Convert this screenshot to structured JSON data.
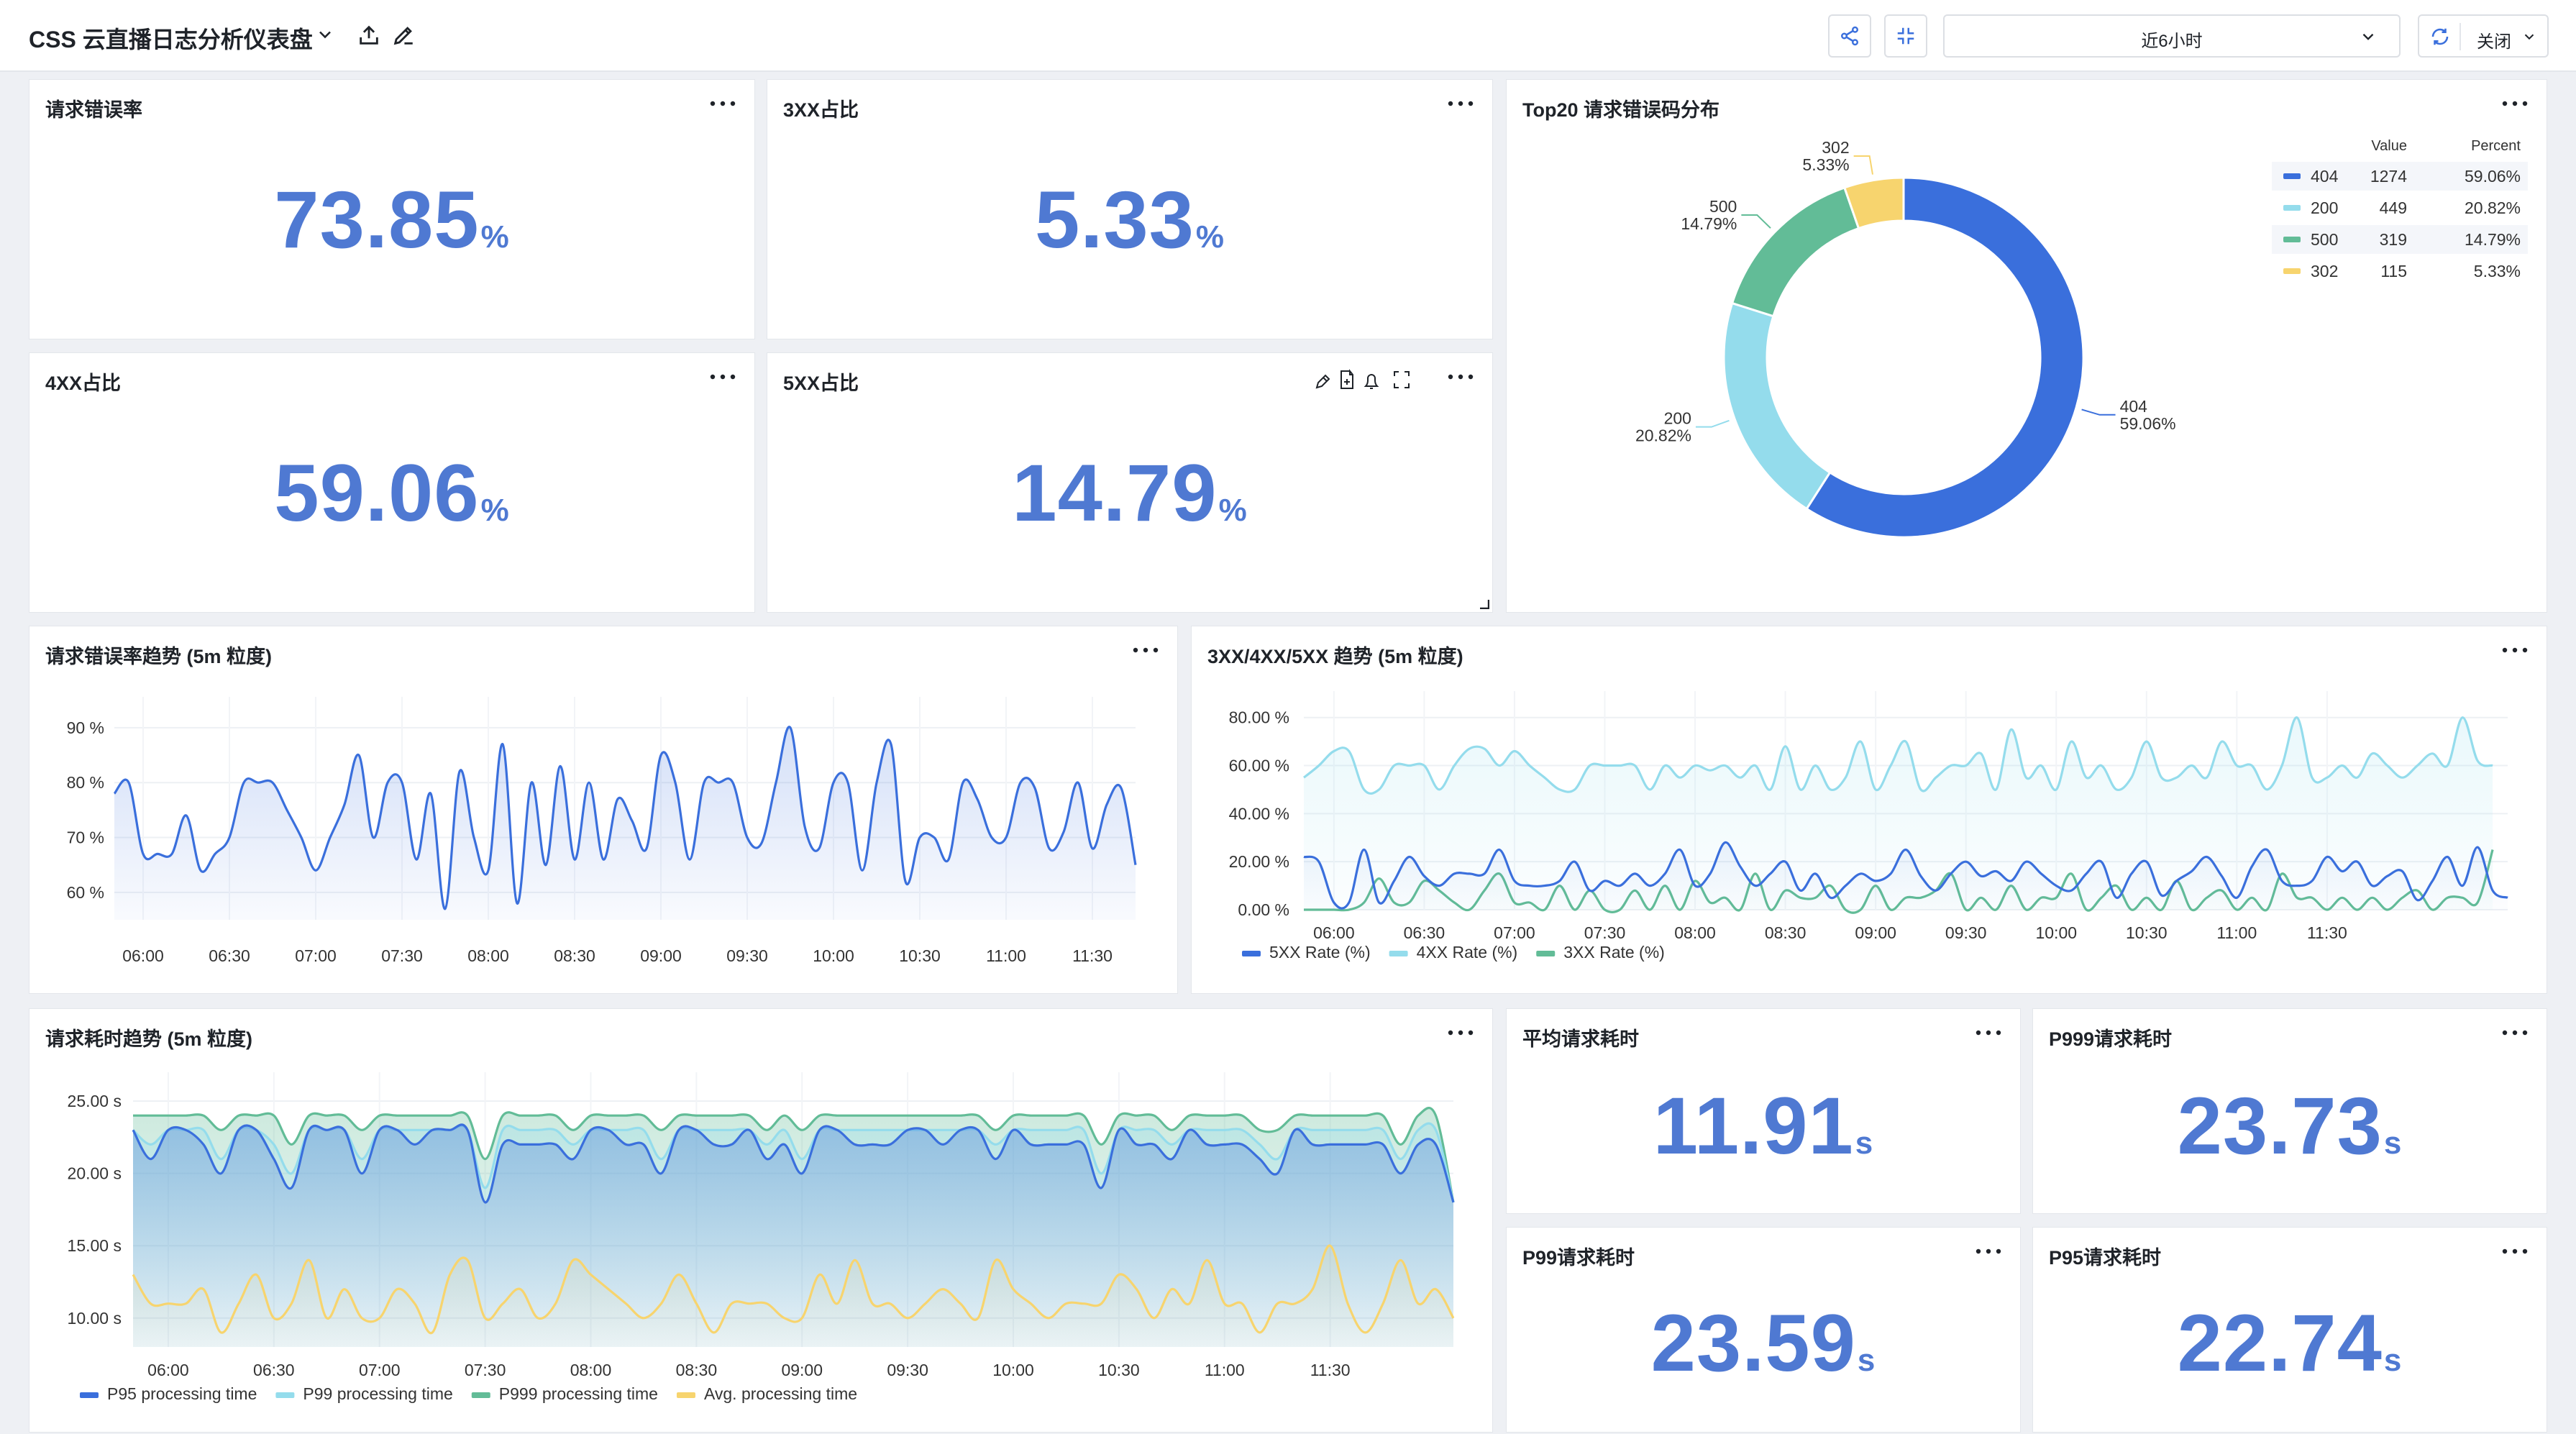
{
  "header": {
    "title": "CSS 云直播日志分析仪表盘",
    "time_range": "近6小时",
    "refresh_label": "关闭"
  },
  "icons": {
    "title": [
      "chevron-down-icon",
      "upload-icon",
      "edit-pencil-icon"
    ],
    "toolbar": [
      "share-icon",
      "collapse-icon",
      "refresh-icon",
      "chevron-down-icon"
    ],
    "panel": [
      "more-icon",
      "pencil-icon",
      "add-file-icon",
      "bell-icon",
      "fullscreen-icon"
    ]
  },
  "colors": {
    "accent": "#4f79d2",
    "blue": "#3a6fdc",
    "cyan": "#94dcec",
    "green": "#62bc97",
    "yellow": "#f7d46e"
  },
  "panels": {
    "error_rate": {
      "title": "请求错误率",
      "value": "73.85",
      "unit": "%"
    },
    "ratio_3xx": {
      "title": "3XX占比",
      "value": "5.33",
      "unit": "%"
    },
    "ratio_4xx": {
      "title": "4XX占比",
      "value": "59.06",
      "unit": "%"
    },
    "ratio_5xx": {
      "title": "5XX占比",
      "value": "14.79",
      "unit": "%"
    },
    "top20": {
      "title": "Top20 请求错误码分布"
    },
    "error_trend": {
      "title": "请求错误率趋势 (5m 粒度)"
    },
    "xx_trend": {
      "title": "3XX/4XX/5XX 趋势 (5m 粒度)"
    },
    "latency_trend": {
      "title": "请求耗时趋势 (5m 粒度)"
    },
    "avg_latency": {
      "title": "平均请求耗时",
      "value": "11.91",
      "unit": "s"
    },
    "p999_latency": {
      "title": "P999请求耗时",
      "value": "23.73",
      "unit": "s"
    },
    "p99_latency": {
      "title": "P99请求耗时",
      "value": "23.59",
      "unit": "s"
    },
    "p95_latency": {
      "title": "P95请求耗时",
      "value": "22.74",
      "unit": "s"
    }
  },
  "chart_data": [
    {
      "id": "donut",
      "type": "pie",
      "title": "Top20 请求错误码分布",
      "legend_headers": [
        "Value",
        "Percent"
      ],
      "legend_placement": "top-right",
      "slices": [
        {
          "name": "404",
          "value": 1274,
          "percent": "59.06%",
          "color": "#3a6fdc"
        },
        {
          "name": "200",
          "value": 449,
          "percent": "20.82%",
          "color": "#94dcec"
        },
        {
          "name": "500",
          "value": 319,
          "percent": "14.79%",
          "color": "#62bc97"
        },
        {
          "name": "302",
          "value": 115,
          "percent": "5.33%",
          "color": "#f7d46e"
        }
      ]
    },
    {
      "id": "error_trend",
      "type": "area",
      "x_ticks": [
        "06:00",
        "06:30",
        "07:00",
        "07:30",
        "08:00",
        "08:30",
        "09:00",
        "09:30",
        "10:00",
        "10:30",
        "11:00",
        "11:30"
      ],
      "y_ticks": [
        "60 %",
        "70 %",
        "80 %",
        "90 %"
      ],
      "ylim": [
        55,
        93
      ],
      "x_start": "05:50",
      "x_step_min": 5,
      "grid": true,
      "series": [
        {
          "color": "#3a6fdc",
          "values": [
            78,
            80,
            67,
            67,
            67,
            74,
            64,
            67,
            70,
            80,
            80,
            80,
            75,
            70,
            64,
            70,
            76,
            85,
            70,
            80,
            80,
            66,
            78,
            57,
            82,
            70,
            64,
            87,
            58,
            80,
            65,
            83,
            66,
            80,
            66,
            77,
            73,
            68,
            85,
            80,
            66,
            80,
            80,
            80,
            70,
            69,
            80,
            90,
            72,
            68,
            80,
            80,
            64,
            80,
            87,
            62,
            70,
            70,
            66,
            80,
            77,
            70,
            70,
            80,
            79,
            68,
            71,
            80,
            68,
            76,
            79,
            65
          ]
        }
      ]
    },
    {
      "id": "xx_trend",
      "type": "area",
      "x_ticks": [
        "06:00",
        "06:30",
        "07:00",
        "07:30",
        "08:00",
        "08:30",
        "09:00",
        "09:30",
        "10:00",
        "10:30",
        "11:00",
        "11:30"
      ],
      "y_ticks": [
        "0.00 %",
        "20.00 %",
        "40.00 %",
        "60.00 %",
        "80.00 %"
      ],
      "ylim": [
        0,
        85
      ],
      "x_start": "05:50",
      "x_step_min": 5,
      "legend_placement": "bottom-left",
      "series": [
        {
          "name": "5XX Rate (%)",
          "color": "#3a6fdc",
          "values": [
            22,
            20,
            3,
            3,
            25,
            3,
            12,
            22,
            14,
            10,
            15,
            15,
            15,
            25,
            12,
            10,
            10,
            12,
            20,
            8,
            12,
            10,
            15,
            10,
            15,
            25,
            10,
            15,
            28,
            18,
            10,
            15,
            20,
            8,
            15,
            5,
            10,
            15,
            12,
            15,
            25,
            14,
            8,
            15,
            20,
            14,
            16,
            12,
            20,
            15,
            10,
            8,
            15,
            20,
            5,
            15,
            20,
            6,
            12,
            16,
            22,
            14,
            5,
            18,
            25,
            12,
            10,
            12,
            22,
            16,
            20,
            10,
            14,
            16,
            4,
            12,
            22,
            10,
            26,
            8,
            5
          ]
        },
        {
          "name": "4XX Rate (%)",
          "color": "#94dcec",
          "values": [
            55,
            60,
            66,
            66,
            50,
            50,
            60,
            60,
            60,
            50,
            60,
            67,
            67,
            60,
            66,
            60,
            55,
            50,
            50,
            60,
            60,
            60,
            60,
            50,
            60,
            55,
            60,
            58,
            60,
            55,
            60,
            50,
            68,
            50,
            60,
            50,
            55,
            70,
            50,
            60,
            70,
            50,
            55,
            60,
            60,
            65,
            50,
            75,
            55,
            60,
            50,
            70,
            55,
            60,
            50,
            55,
            70,
            55,
            55,
            60,
            55,
            70,
            60,
            60,
            50,
            60,
            80,
            55,
            55,
            60,
            55,
            65,
            60,
            55,
            60,
            65,
            60,
            80,
            62,
            60
          ]
        },
        {
          "name": "3XX Rate (%)",
          "color": "#62bc97",
          "values": [
            0,
            0,
            0,
            0,
            3,
            13,
            3,
            3,
            12,
            8,
            3,
            0,
            8,
            15,
            3,
            3,
            0,
            10,
            0,
            8,
            0,
            0,
            8,
            0,
            10,
            0,
            12,
            3,
            5,
            0,
            15,
            0,
            8,
            5,
            5,
            10,
            0,
            0,
            10,
            0,
            5,
            5,
            8,
            15,
            0,
            5,
            0,
            10,
            0,
            5,
            5,
            15,
            0,
            5,
            10,
            0,
            5,
            0,
            12,
            0,
            5,
            8,
            0,
            5,
            0,
            15,
            5,
            5,
            0,
            5,
            0,
            5,
            0,
            5,
            8,
            0,
            5,
            5,
            3,
            25
          ]
        }
      ]
    },
    {
      "id": "latency_trend",
      "type": "area",
      "x_ticks": [
        "06:00",
        "06:30",
        "07:00",
        "07:30",
        "08:00",
        "08:30",
        "09:00",
        "09:30",
        "10:00",
        "10:30",
        "11:00",
        "11:30"
      ],
      "y_ticks": [
        "10.00 s",
        "15.00 s",
        "20.00 s",
        "25.00 s"
      ],
      "ylim": [
        8,
        26
      ],
      "x_start": "05:50",
      "x_step_min": 5,
      "legend_placement": "bottom-left",
      "series": [
        {
          "name": "P95 processing time",
          "color": "#3a6fdc",
          "values": [
            23,
            21,
            23,
            23,
            22,
            20,
            23,
            23,
            21,
            19,
            23,
            23,
            23,
            20,
            23,
            23,
            22,
            23,
            23,
            23,
            18,
            22,
            22,
            22,
            22,
            21,
            23,
            23,
            22,
            22,
            20,
            23,
            23,
            22,
            22,
            23,
            21,
            22,
            20,
            23,
            23,
            22,
            22,
            22,
            23,
            23,
            22,
            23,
            23,
            21,
            23,
            22,
            22,
            22,
            22,
            19,
            23,
            22,
            22,
            21,
            23,
            22,
            22,
            22,
            21,
            20,
            23,
            22,
            22,
            22,
            22,
            22,
            20,
            22,
            22,
            18
          ]
        },
        {
          "name": "P99 processing time",
          "color": "#94dcec",
          "values": [
            23,
            22,
            23,
            23,
            23,
            21,
            23,
            23,
            22,
            20,
            23,
            23,
            23,
            21,
            23,
            23,
            23,
            23,
            23,
            23,
            19,
            23,
            23,
            23,
            23,
            22,
            23,
            23,
            23,
            23,
            21,
            23,
            23,
            23,
            23,
            23,
            22,
            23,
            21,
            23,
            23,
            23,
            23,
            23,
            23,
            23,
            23,
            23,
            23,
            22,
            23,
            23,
            23,
            23,
            23,
            20,
            23,
            23,
            23,
            22,
            23,
            23,
            23,
            23,
            22,
            21,
            23,
            23,
            23,
            23,
            23,
            23,
            21,
            23,
            23,
            18
          ]
        },
        {
          "name": "P999 processing time",
          "color": "#62bc97",
          "values": [
            24,
            24,
            24,
            24,
            24,
            23,
            24,
            24,
            24,
            22,
            24,
            24,
            24,
            23,
            24,
            24,
            24,
            24,
            24,
            24,
            21,
            24,
            24,
            24,
            24,
            23,
            24,
            24,
            24,
            24,
            23,
            24,
            24,
            24,
            24,
            24,
            23,
            24,
            23,
            24,
            24,
            24,
            24,
            24,
            24,
            24,
            24,
            24,
            24,
            23,
            24,
            24,
            24,
            24,
            24,
            22,
            24,
            24,
            24,
            23,
            24,
            24,
            24,
            24,
            23,
            23,
            24,
            24,
            24,
            24,
            24,
            24,
            22,
            24,
            24,
            18
          ]
        },
        {
          "name": "Avg. processing time",
          "color": "#f7d46e",
          "values": [
            13,
            11,
            11,
            11,
            12,
            9,
            11,
            13,
            10,
            11,
            14,
            10,
            12,
            10,
            10,
            12,
            11,
            9,
            13,
            14,
            10,
            11,
            12,
            10,
            11,
            14,
            13,
            12,
            11,
            10,
            11,
            13,
            11,
            9,
            11,
            11,
            11,
            10,
            10,
            13,
            11,
            14,
            11,
            11,
            10,
            11,
            12,
            11,
            10,
            14,
            12,
            11,
            10,
            11,
            11,
            11,
            13,
            12,
            10,
            12,
            11,
            14,
            11,
            11,
            9,
            11,
            11,
            12,
            15,
            11,
            9,
            11,
            14,
            11,
            12,
            10
          ]
        }
      ]
    }
  ]
}
